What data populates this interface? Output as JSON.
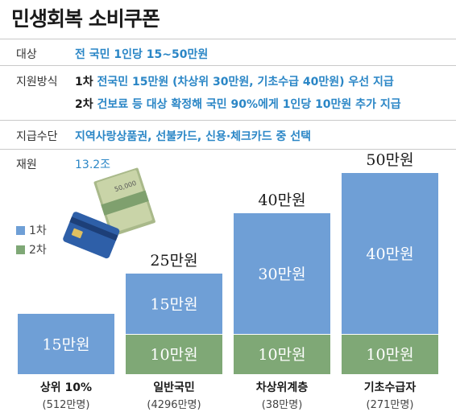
{
  "title": "민생회복 소비쿠폰",
  "info": {
    "target_label": "대상",
    "target_value": "전 국민 1인당 15~50만원",
    "method_label": "지원방식",
    "phase1_tag": "1차",
    "phase1_text": "전국민 15만원 (차상위 30만원, 기초수급 40만원) 우선 지급",
    "phase2_tag": "2차",
    "phase2_text": "건보료 등 대상 확정해 국민 90%에게 1인당 10만원 추가 지급",
    "means_label": "지급수단",
    "means_value": "지역사랑상품권, 선불카드, 신용·체크카드 중 선택",
    "budget_label": "재원",
    "budget_value": "13.2조"
  },
  "illustration": {
    "bill_text": "50,000"
  },
  "colors": {
    "phase1": "#6f9fd6",
    "phase2": "#7fa876",
    "accent": "#2a86c6"
  },
  "chart_data": {
    "type": "bar",
    "stacked": true,
    "unit": "만원",
    "categories": [
      "상위 10%",
      "일반국민",
      "차상위계층",
      "기초수급자"
    ],
    "sublabels": [
      "(512만명)",
      "(4296만명)",
      "(38만명)",
      "(271만명)"
    ],
    "series": [
      {
        "name": "2차",
        "values": [
          0,
          10,
          10,
          10
        ],
        "labels": [
          "",
          "10만원",
          "10만원",
          "10만원"
        ]
      },
      {
        "name": "1차",
        "values": [
          15,
          15,
          30,
          40
        ],
        "labels": [
          "15만원",
          "15만원",
          "30만원",
          "40만원"
        ]
      }
    ],
    "totals": [
      "",
      "25만원",
      "40만원",
      "50만원"
    ],
    "legend": [
      "1차",
      "2차"
    ],
    "legend_placement": "left",
    "ylim": [
      0,
      50
    ]
  }
}
